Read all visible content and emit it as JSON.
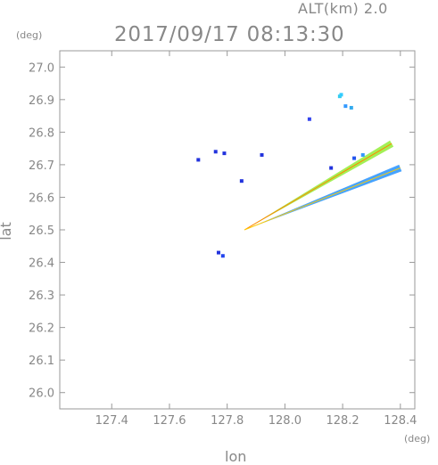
{
  "header": {
    "alt_label": "ALT(km) 2.0",
    "datetime": "2017/09/17 08:13:30",
    "y_unit": "(deg)",
    "x_unit": "(deg)"
  },
  "chart_data": {
    "type": "scatter",
    "title": "2017/09/17 08:13:30",
    "xlabel": "lon",
    "ylabel": "lat",
    "xlim": [
      127.22,
      128.45
    ],
    "ylim": [
      25.95,
      27.05
    ],
    "xticks": [
      "127.4",
      "127.6",
      "127.8",
      "128.0",
      "128.2",
      "128.4"
    ],
    "yticks": [
      "26.0",
      "26.1",
      "26.2",
      "26.3",
      "26.4",
      "26.5",
      "26.6",
      "26.7",
      "26.8",
      "26.9",
      "27.0"
    ],
    "radar_origin": [
      127.855,
      26.5
    ],
    "beams": [
      {
        "start": [
          127.86,
          26.5
        ],
        "end": [
          128.37,
          26.765
        ],
        "color": "#99ee44"
      },
      {
        "start": [
          127.86,
          26.5
        ],
        "end": [
          128.4,
          26.69
        ],
        "color": "#3399ff"
      }
    ],
    "echoes": [
      {
        "x": 128.19,
        "y": 26.91,
        "color": "#33ccee"
      },
      {
        "x": 128.21,
        "y": 26.88,
        "color": "#3399ff"
      },
      {
        "x": 128.23,
        "y": 26.875,
        "color": "#33aaee"
      },
      {
        "x": 128.085,
        "y": 26.84,
        "color": "#3344ee"
      },
      {
        "x": 128.195,
        "y": 26.915,
        "color": "#33ccff"
      },
      {
        "x": 127.76,
        "y": 26.74,
        "color": "#2233dd"
      },
      {
        "x": 127.79,
        "y": 26.735,
        "color": "#2233dd"
      },
      {
        "x": 127.7,
        "y": 26.715,
        "color": "#2233dd"
      },
      {
        "x": 127.92,
        "y": 26.73,
        "color": "#2233dd"
      },
      {
        "x": 127.85,
        "y": 26.65,
        "color": "#2233dd"
      },
      {
        "x": 128.24,
        "y": 26.72,
        "color": "#2255ee"
      },
      {
        "x": 128.27,
        "y": 26.73,
        "color": "#3399ff"
      },
      {
        "x": 128.16,
        "y": 26.69,
        "color": "#2233dd"
      },
      {
        "x": 127.77,
        "y": 26.43,
        "color": "#2233dd"
      },
      {
        "x": 127.785,
        "y": 26.42,
        "color": "#2244ee"
      }
    ]
  }
}
